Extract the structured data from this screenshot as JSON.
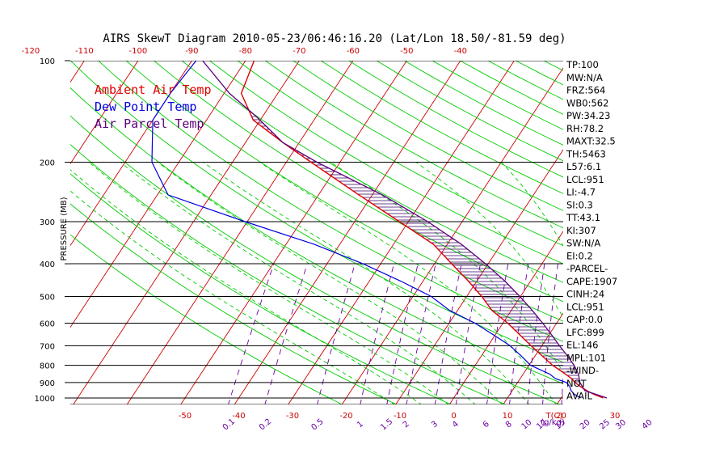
{
  "title": "AIRS SkewT Diagram 2010-05-23/06:46:16.20 (Lat/Lon 18.50/-81.59 deg)",
  "colors": {
    "ambient": "#e00000",
    "dewpoint": "#0000e0",
    "parcel": "#5a007a",
    "isotherm": "#cc0000",
    "dry_adiabat": "#00cc00",
    "moist_adiabat": "#00cc00",
    "mixing_ratio": "#6a00a0",
    "isobar": "#000000",
    "cape_hatch": "#3a006a"
  },
  "legend": [
    {
      "label": "Ambient Air Temp",
      "color": "#e00000"
    },
    {
      "label": "Dew Point Temp",
      "color": "#0000e0"
    },
    {
      "label": "Air Parcel Temp",
      "color": "#5a007a"
    }
  ],
  "indices": [
    "TP:100",
    "MW:N/A",
    "FRZ:564",
    "WB0:562",
    "PW:34.23",
    "RH:78.2",
    "MAXT:32.5",
    "TH:5463",
    "L57:6.1",
    "LCL:951",
    "LI:-4.7",
    "SI:0.3",
    "TT:43.1",
    "KI:307",
    "SW:N/A",
    "EI:0.2",
    "-PARCEL-",
    "CAPE:1907",
    "CINH:24",
    "LCL:951",
    "CAP:0.0",
    "LFC:899",
    "EL:146",
    "MPL:101",
    "-WIND-",
    "NOT",
    "AVAIL"
  ],
  "chart_data": {
    "type": "skewt",
    "title": "AIRS SkewT Diagram 2010-05-23/06:46:16.20 (Lat/Lon 18.50/-81.59 deg)",
    "ylabel": "PRESSURE (MB)",
    "xlabel": "T(C)",
    "mixing_ratio_label": "(g/kg)",
    "pressure_range": [
      1000,
      100
    ],
    "pressure_ticks": [
      100,
      200,
      300,
      400,
      500,
      600,
      700,
      800,
      900,
      1000
    ],
    "isobar_lines": [
      200,
      300,
      400,
      500,
      600,
      700,
      800,
      900,
      1000
    ],
    "top_temperature_ticks": [
      -120,
      -110,
      -100,
      -90,
      -80,
      -70,
      -60,
      -50,
      -40
    ],
    "bottom_temperature_ticks": [
      -50,
      -40,
      -30,
      -20,
      -10,
      0,
      10,
      20,
      30
    ],
    "mixing_ratio_ticks": [
      "0.1",
      "0.2",
      "0.5",
      "1",
      "1.5",
      "2",
      "3",
      "4",
      "6",
      "8",
      "10",
      "12",
      "15",
      "20",
      "25",
      "30",
      "40"
    ],
    "mixing_ratio_values": [
      0.1,
      0.2,
      0.5,
      1,
      1.5,
      2,
      3,
      4,
      6,
      8,
      10,
      12,
      15,
      20,
      25,
      30,
      40
    ],
    "isotherms_c": [
      -160,
      -150,
      -140,
      -130,
      -120,
      -110,
      -100,
      -90,
      -80,
      -70,
      -60,
      -50,
      -40,
      -30,
      -20,
      -10,
      0,
      10,
      20,
      30,
      40
    ],
    "dry_adiabats_theta_k": [
      250,
      260,
      270,
      280,
      290,
      300,
      310,
      320,
      330,
      340,
      350,
      360,
      370,
      380,
      390,
      400,
      410,
      420,
      430,
      440,
      450,
      460,
      470,
      480,
      490,
      500,
      510,
      520,
      530,
      540,
      550,
      560,
      570,
      580
    ],
    "moist_adiabats_base_c": [
      -10,
      -5,
      0,
      5,
      10,
      15,
      20,
      25,
      30,
      35
    ],
    "series": [
      {
        "name": "Ambient Air Temp",
        "key": "ambient",
        "points": [
          [
            1000,
            27.8
          ],
          [
            975,
            25.6
          ],
          [
            950,
            23.8
          ],
          [
            925,
            22.2
          ],
          [
            900,
            20.7
          ],
          [
            875,
            19.5
          ],
          [
            850,
            17.9
          ],
          [
            800,
            14.4
          ],
          [
            750,
            11.3
          ],
          [
            700,
            8.0
          ],
          [
            650,
            4.6
          ],
          [
            600,
            0.9
          ],
          [
            550,
            -3.6
          ],
          [
            500,
            -7.2
          ],
          [
            450,
            -11.6
          ],
          [
            400,
            -16.8
          ],
          [
            350,
            -22.6
          ],
          [
            300,
            -31.7
          ],
          [
            250,
            -42.5
          ],
          [
            200,
            -55.4
          ],
          [
            175,
            -63.0
          ],
          [
            150,
            -71.3
          ],
          [
            125,
            -76.8
          ],
          [
            100,
            -78.4
          ]
        ]
      },
      {
        "name": "Dew Point Temp",
        "key": "dewpoint",
        "points": [
          [
            1000,
            23.6
          ],
          [
            975,
            22.0
          ],
          [
            950,
            20.9
          ],
          [
            925,
            20.2
          ],
          [
            900,
            19.1
          ],
          [
            875,
            16.5
          ],
          [
            850,
            15.0
          ],
          [
            800,
            10.3
          ],
          [
            750,
            7.4
          ],
          [
            700,
            4.1
          ],
          [
            650,
            -0.3
          ],
          [
            600,
            -5.2
          ],
          [
            550,
            -11.5
          ],
          [
            500,
            -16.6
          ],
          [
            450,
            -24.2
          ],
          [
            400,
            -33.3
          ],
          [
            350,
            -44.8
          ],
          [
            300,
            -60.4
          ],
          [
            250,
            -78.0
          ],
          [
            200,
            -85.0
          ],
          [
            150,
            -90.0
          ],
          [
            125,
            -90.0
          ],
          [
            100,
            -89.2
          ]
        ]
      },
      {
        "name": "Air Parcel Temp",
        "key": "parcel",
        "points": [
          [
            1000,
            28.5
          ],
          [
            951,
            23.5
          ],
          [
            900,
            21.6
          ],
          [
            850,
            20.3
          ],
          [
            800,
            18.4
          ],
          [
            750,
            16.0
          ],
          [
            700,
            13.3
          ],
          [
            650,
            10.5
          ],
          [
            600,
            7.4
          ],
          [
            550,
            3.9
          ],
          [
            500,
            -0.1
          ],
          [
            450,
            -4.8
          ],
          [
            400,
            -10.5
          ],
          [
            350,
            -17.4
          ],
          [
            300,
            -26.4
          ],
          [
            250,
            -38.1
          ],
          [
            200,
            -54.3
          ],
          [
            175,
            -63.0
          ],
          [
            146,
            -71.3
          ],
          [
            125,
            -79.0
          ],
          [
            100,
            -88.0
          ]
        ]
      }
    ],
    "cape_region": {
      "from_hpa": 899,
      "to_hpa": 146
    }
  },
  "axis_texts": {
    "ylabel": "PRESSURE (MB)",
    "xlabel_temp": "T(C)",
    "xlabel_mix": "(g/kg)"
  }
}
